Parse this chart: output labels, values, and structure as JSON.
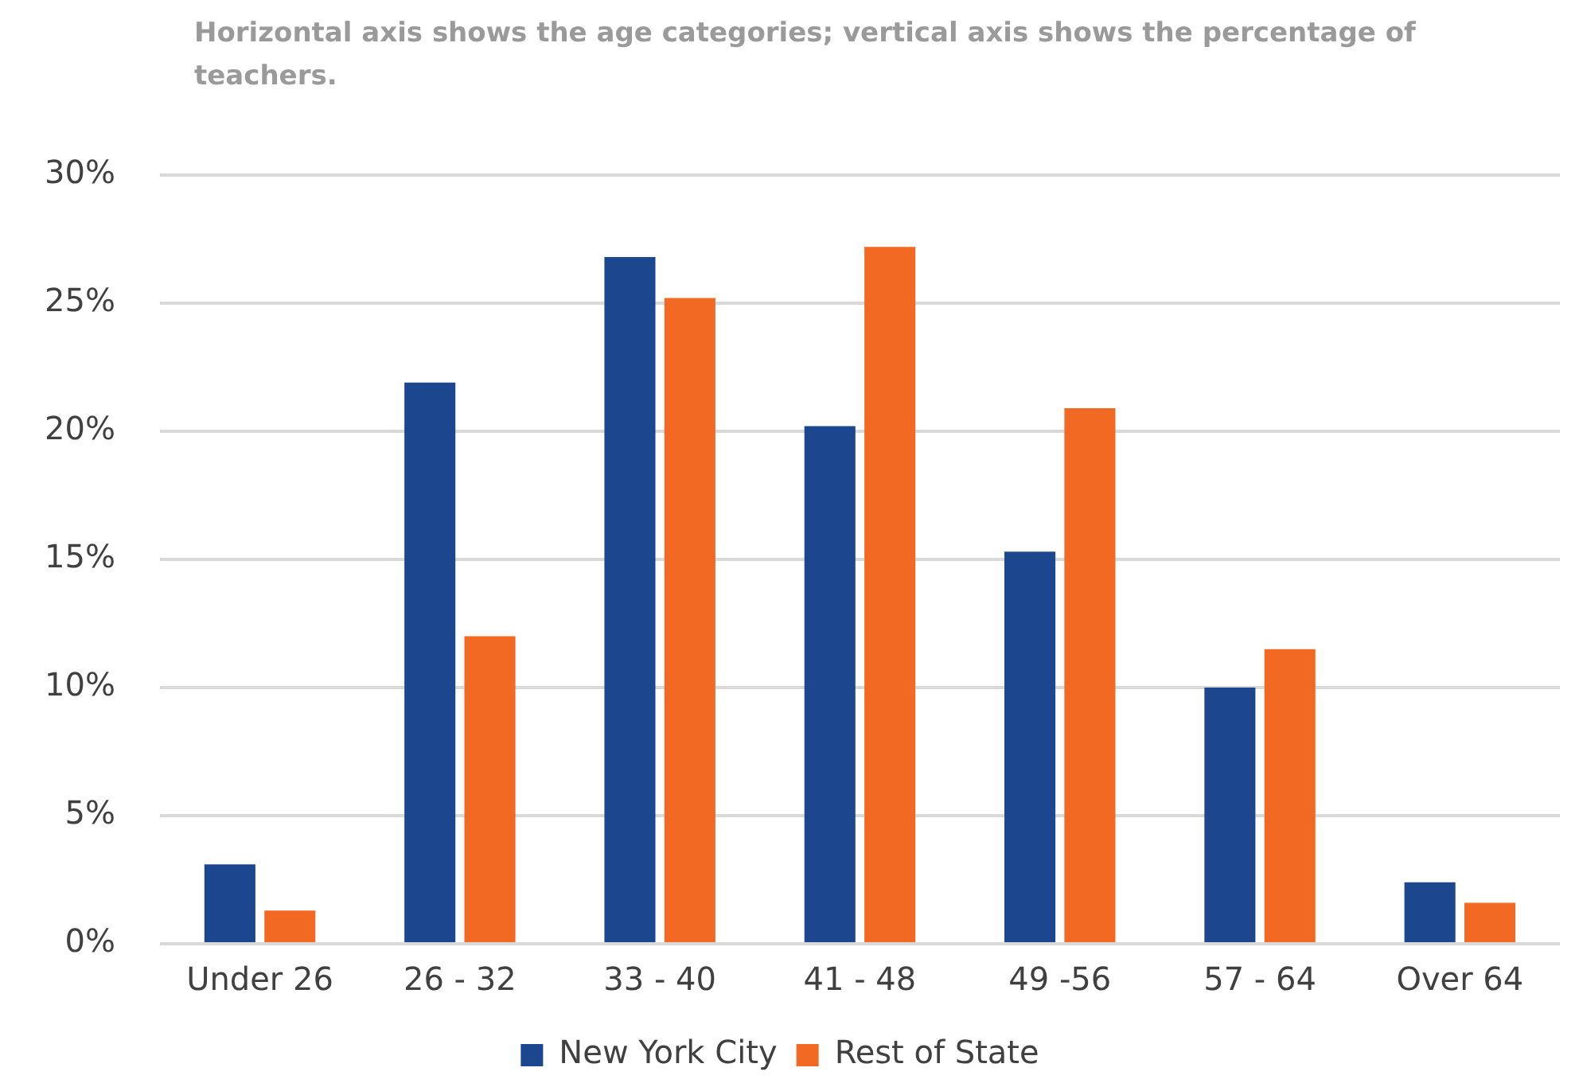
{
  "chart_data": {
    "type": "bar",
    "title": "Horizontal axis shows the age categories; vertical axis shows the percentage of teachers.",
    "categories": [
      "Under 26",
      "26 - 32",
      "33 - 40",
      "41 - 48",
      "49 -56",
      "57 - 64",
      "Over 64"
    ],
    "series": [
      {
        "name": "New York City",
        "color": "#1c478e",
        "values": [
          3.1,
          21.9,
          26.8,
          20.2,
          15.3,
          10.0,
          2.4
        ]
      },
      {
        "name": "Rest of State",
        "color": "#f26924",
        "values": [
          1.3,
          12.0,
          25.2,
          27.2,
          20.9,
          11.5,
          1.6
        ]
      }
    ],
    "ylim": [
      0,
      30
    ],
    "yticks": [
      {
        "value": 0,
        "label": "0%"
      },
      {
        "value": 5,
        "label": "5%"
      },
      {
        "value": 10,
        "label": "10%"
      },
      {
        "value": 15,
        "label": "15%"
      },
      {
        "value": 20,
        "label": "20%"
      },
      {
        "value": 25,
        "label": "25%"
      },
      {
        "value": 30,
        "label": "30%"
      }
    ],
    "grid": "y",
    "legend": "bottom"
  }
}
